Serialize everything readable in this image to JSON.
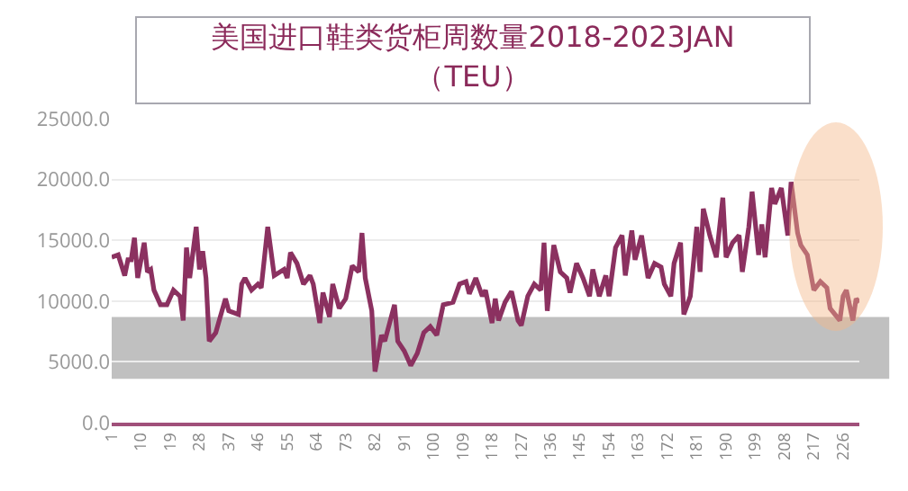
{
  "chart_data": {
    "type": "line",
    "title": "美国进口鞋类货柜周数量2018-2023JAN",
    "subtitle": "（TEU）",
    "x": [
      1,
      3,
      5,
      6,
      7,
      8,
      9,
      11,
      12,
      13,
      14,
      16,
      18,
      20,
      22,
      23,
      24,
      25,
      27,
      28,
      29,
      30,
      31,
      33,
      36,
      37,
      40,
      41,
      42,
      44,
      46,
      47,
      49,
      51,
      54,
      55,
      56,
      58,
      60,
      62,
      63,
      65,
      66,
      68,
      69,
      71,
      73,
      75,
      77,
      78,
      79,
      81,
      82,
      84,
      85,
      88,
      89,
      91,
      93,
      95,
      97,
      99,
      101,
      103,
      106,
      108,
      110,
      111,
      113,
      115,
      116,
      118,
      119,
      120,
      122,
      124,
      126,
      127,
      129,
      131,
      133,
      134,
      135,
      137,
      139,
      141,
      142,
      144,
      146,
      148,
      149,
      151,
      153,
      154,
      156,
      158,
      159,
      161,
      162,
      164,
      166,
      168,
      170,
      171,
      173,
      174,
      176,
      177,
      179,
      181,
      182,
      183,
      185,
      187,
      189,
      190,
      192,
      194,
      195,
      197,
      198,
      200,
      201,
      202,
      204,
      205,
      207,
      209,
      210,
      212,
      213,
      215,
      217,
      219,
      221,
      222,
      225,
      226,
      227,
      229,
      230,
      231
    ],
    "series": [
      {
        "color": "#8b3160",
        "values": [
          13600,
          13800,
          12100,
          13400,
          13400,
          15200,
          11900,
          14800,
          12400,
          12600,
          10900,
          9700,
          9700,
          10900,
          10400,
          8400,
          14400,
          11900,
          16100,
          12600,
          14100,
          11900,
          6700,
          7400,
          10200,
          9200,
          8900,
          11400,
          11900,
          10900,
          11400,
          11100,
          16100,
          12100,
          12600,
          11900,
          14000,
          13100,
          11400,
          12100,
          11400,
          8200,
          10700,
          8700,
          11400,
          9400,
          10200,
          12900,
          12400,
          15600,
          11900,
          9200,
          4200,
          7200,
          6700,
          9700,
          6700,
          5900,
          4700,
          5700,
          7400,
          7900,
          7200,
          9700,
          9900,
          11400,
          11600,
          10600,
          11900,
          10400,
          10900,
          8200,
          10200,
          8400,
          9900,
          10800,
          8400,
          8000,
          10400,
          11400,
          10900,
          14800,
          9200,
          14600,
          12400,
          11900,
          10700,
          13100,
          11900,
          10400,
          12600,
          10400,
          12100,
          10400,
          14400,
          15400,
          12100,
          15800,
          13400,
          15400,
          11900,
          13100,
          12800,
          11400,
          10400,
          13100,
          14800,
          8900,
          10400,
          16100,
          12400,
          17600,
          15400,
          13600,
          18500,
          13600,
          14800,
          15400,
          12400,
          16100,
          19000,
          13800,
          16300,
          13600,
          19300,
          18000,
          19300,
          15400,
          19800,
          15600,
          14600,
          13800,
          10900,
          11600,
          11100,
          9400,
          8400,
          10400,
          10900,
          8400,
          10200,
          9900
        ]
      }
    ],
    "xlim": [
      1,
      231
    ],
    "xticks": [
      1,
      10,
      19,
      28,
      37,
      46,
      55,
      64,
      73,
      82,
      91,
      100,
      109,
      118,
      127,
      136,
      145,
      154,
      163,
      172,
      181,
      190,
      199,
      208,
      217,
      226
    ],
    "ylim": [
      0,
      25000
    ],
    "yticks": [
      {
        "value": 0,
        "label": "0.0"
      },
      {
        "value": 5000,
        "label": "5000.0"
      },
      {
        "value": 10000,
        "label": "10000.0"
      },
      {
        "value": 15000,
        "label": "15000.0"
      },
      {
        "value": 20000,
        "label": "20000.0"
      },
      {
        "value": 25000,
        "label": "25000.0"
      }
    ],
    "bands": [
      {
        "axis": "y",
        "from": 3600,
        "to": 8700,
        "color": "#c0c0c0"
      }
    ],
    "grid": "y",
    "legend": false,
    "marker": "none",
    "line_style": "solid"
  }
}
